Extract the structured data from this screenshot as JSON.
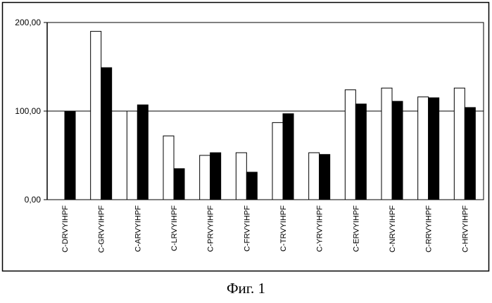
{
  "caption": "Фиг. 1",
  "chart_data": {
    "type": "bar",
    "title": "",
    "xlabel": "",
    "ylabel": "",
    "categories": [
      "C-DRVYIHPF",
      "C-GRVYIHPF",
      "C-ARVYIHPF",
      "C-LRVYIHPF",
      "C-PRVYIHPF",
      "C-FRVYIHPF",
      "C-TRVYIHPF",
      "C-YRVYIHPF",
      "C-ERVYIHPF",
      "C-NRVYIHPF",
      "C-RRVYIHPF",
      "C-HRVYIHPF"
    ],
    "series": [
      {
        "values": [
          0,
          190,
          100,
          72,
          50,
          53,
          87,
          53,
          124,
          126,
          116,
          126
        ]
      },
      {
        "values": [
          100,
          149,
          107,
          35,
          53,
          31,
          97,
          51,
          108,
          111,
          115,
          104
        ]
      }
    ],
    "series_colors": [
      "#ffffff",
      "#000000"
    ],
    "yticks": [
      "0,00",
      "100,00",
      "200,00"
    ],
    "ytick_values": [
      0,
      100,
      200
    ],
    "ylim": [
      0,
      200
    ],
    "reference_line": 100,
    "legend": "none",
    "grid": false
  }
}
